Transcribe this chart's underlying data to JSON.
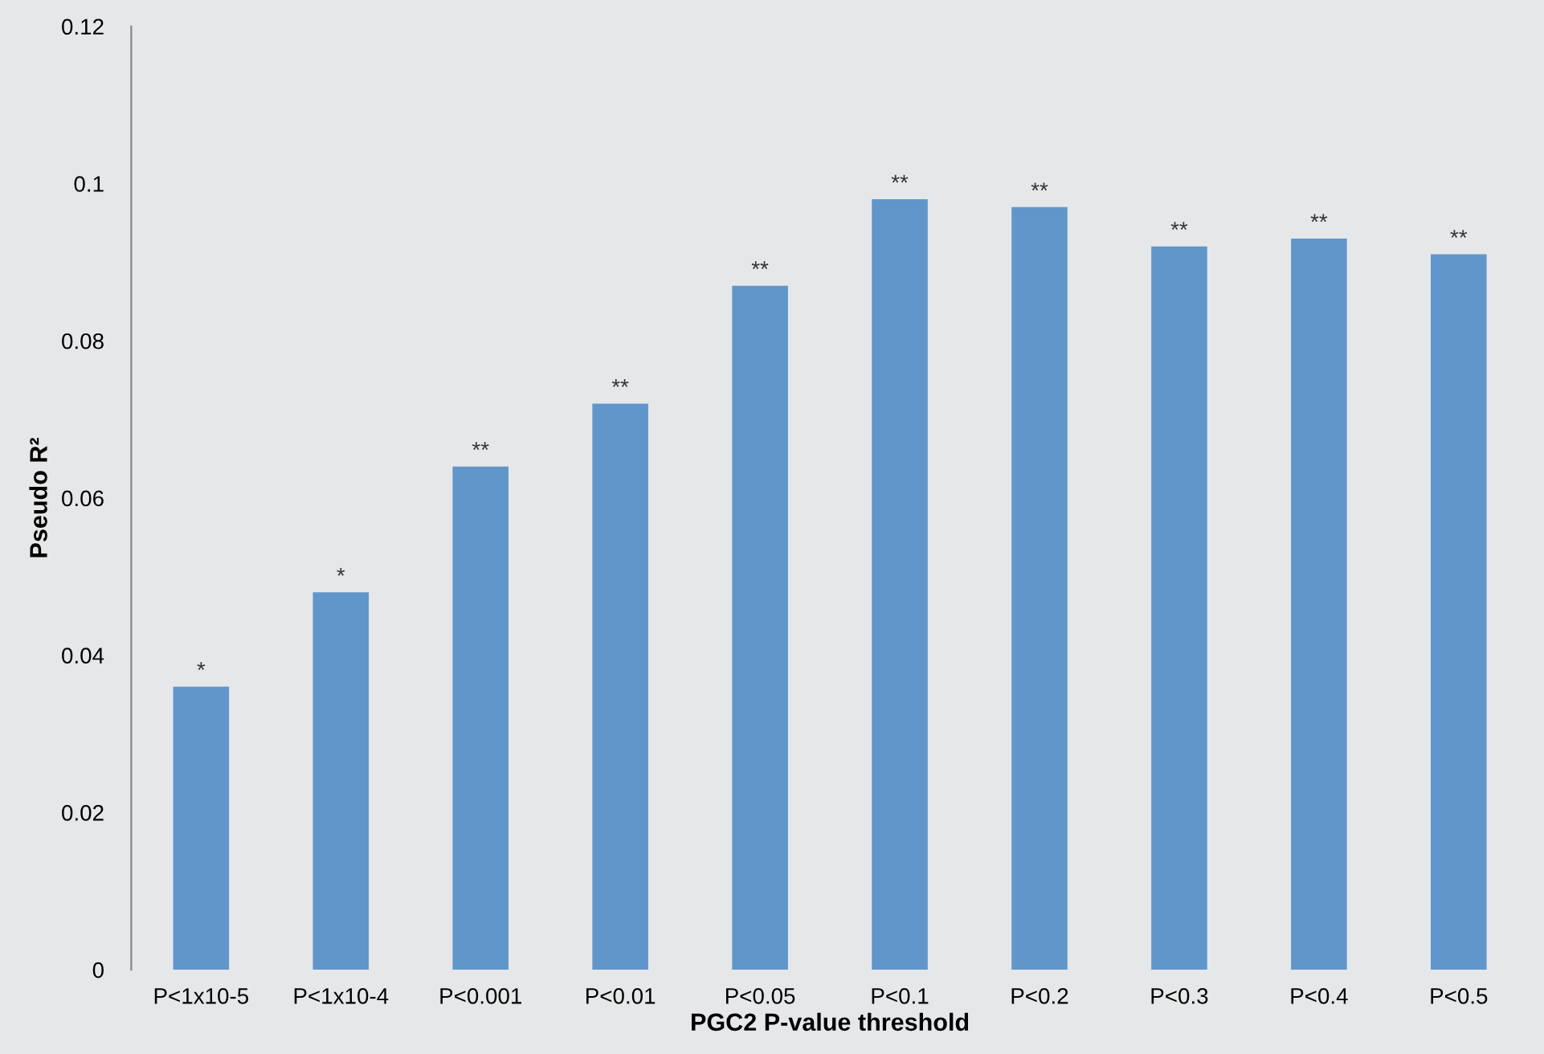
{
  "chart_data": {
    "type": "bar",
    "categories": [
      "P<1x10-5",
      "P<1x10-4",
      "P<0.001",
      "P<0.01",
      "P<0.05",
      "P<0.1",
      "P<0.2",
      "P<0.3",
      "P<0.4",
      "P<0.5"
    ],
    "values": [
      0.036,
      0.048,
      0.064,
      0.072,
      0.087,
      0.098,
      0.097,
      0.092,
      0.093,
      0.091
    ],
    "color": "#6196cb",
    "xlabel": "PGC2 P-value threshold",
    "ylabel": "Pseudo R²",
    "ylim": [
      0,
      0.12
    ],
    "yticks": [
      0,
      0.02,
      0.04,
      0.06,
      0.08,
      0.1,
      0.12
    ],
    "grid": false,
    "legend": false,
    "annotations": [
      {
        "text": "*",
        "x": "P<1x10-5",
        "y": 0.036
      },
      {
        "text": "*",
        "x": "P<1x10-4",
        "y": 0.048
      },
      {
        "text": "**",
        "x": "P<0.001",
        "y": 0.064
      },
      {
        "text": "**",
        "x": "P<0.01",
        "y": 0.072
      },
      {
        "text": "**",
        "x": "P<0.05",
        "y": 0.087
      },
      {
        "text": "**",
        "x": "P<0.1",
        "y": 0.098
      },
      {
        "text": "**",
        "x": "P<0.2",
        "y": 0.097
      },
      {
        "text": "**",
        "x": "P<0.3",
        "y": 0.092
      },
      {
        "text": "**",
        "x": "P<0.4",
        "y": 0.093
      },
      {
        "text": "**",
        "x": "P<0.5",
        "y": 0.091
      }
    ]
  }
}
